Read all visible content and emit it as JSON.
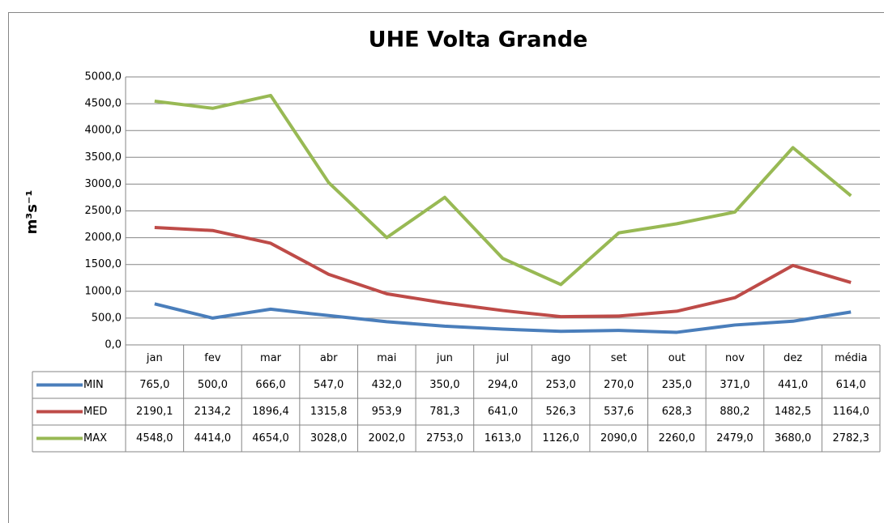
{
  "chart_data": {
    "type": "line",
    "title": "UHE Volta Grande",
    "y_label": "m³s⁻¹",
    "categories": [
      "jan",
      "fev",
      "mar",
      "abr",
      "mai",
      "jun",
      "jul",
      "ago",
      "set",
      "out",
      "nov",
      "dez",
      "média"
    ],
    "series": [
      {
        "name": "MIN",
        "color": "#4a7ebb",
        "values": [
          765.0,
          500.0,
          666.0,
          547.0,
          432.0,
          350.0,
          294.0,
          253.0,
          270.0,
          235.0,
          371.0,
          441.0,
          614.0
        ],
        "value_labels": [
          "765,0",
          "500,0",
          "666,0",
          "547,0",
          "432,0",
          "350,0",
          "294,0",
          "253,0",
          "270,0",
          "235,0",
          "371,0",
          "441,0",
          "614,0"
        ]
      },
      {
        "name": "MED",
        "color": "#be4b48",
        "values": [
          2190.1,
          2134.2,
          1896.4,
          1315.8,
          953.9,
          781.3,
          641.0,
          526.3,
          537.6,
          628.3,
          880.2,
          1482.5,
          1164.0
        ],
        "value_labels": [
          "2190,1",
          "2134,2",
          "1896,4",
          "1315,8",
          "953,9",
          "781,3",
          "641,0",
          "526,3",
          "537,6",
          "628,3",
          "880,2",
          "1482,5",
          "1164,0"
        ]
      },
      {
        "name": "MAX",
        "color": "#98b954",
        "values": [
          4548.0,
          4414.0,
          4654.0,
          3028.0,
          2002.0,
          2753.0,
          1613.0,
          1126.0,
          2090.0,
          2260.0,
          2479.0,
          3680.0,
          2782.3
        ],
        "value_labels": [
          "4548,0",
          "4414,0",
          "4654,0",
          "3028,0",
          "2002,0",
          "2753,0",
          "1613,0",
          "1126,0",
          "2090,0",
          "2260,0",
          "2479,0",
          "3680,0",
          "2782,3"
        ]
      }
    ],
    "ylim": [
      0,
      5000
    ],
    "yticks": [
      {
        "value": 0,
        "label": "0,0"
      },
      {
        "value": 500,
        "label": "500,0"
      },
      {
        "value": 1000,
        "label": "1000,0"
      },
      {
        "value": 1500,
        "label": "1500,0"
      },
      {
        "value": 2000,
        "label": "2000,0"
      },
      {
        "value": 2500,
        "label": "2500,0"
      },
      {
        "value": 3000,
        "label": "3000,0"
      },
      {
        "value": 3500,
        "label": "3500,0"
      },
      {
        "value": 4000,
        "label": "4000,0"
      },
      {
        "value": 4500,
        "label": "4500,0"
      },
      {
        "value": 5000,
        "label": "5000,0"
      }
    ],
    "grid": true
  }
}
